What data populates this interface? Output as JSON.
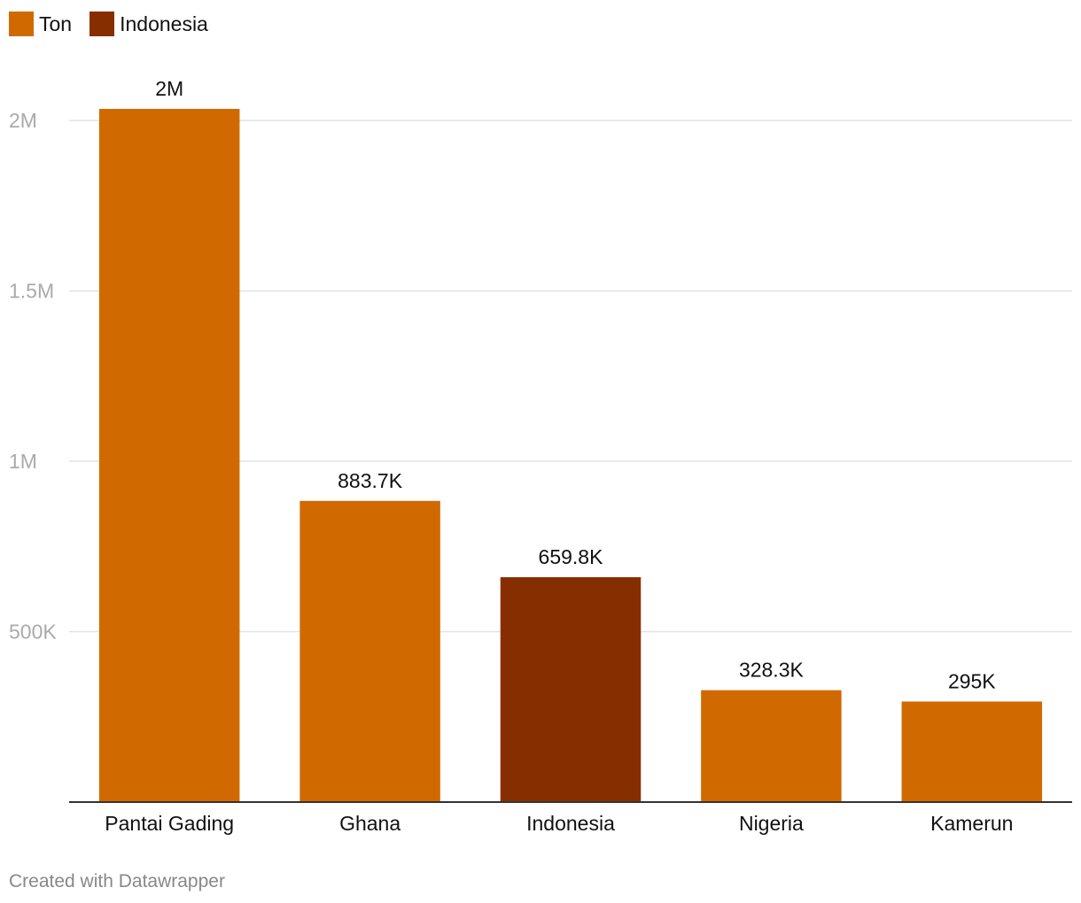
{
  "legend": [
    {
      "label": "Ton",
      "color": "#d06a00"
    },
    {
      "label": "Indonesia",
      "color": "#872e00"
    }
  ],
  "footer": "Created with Datawrapper",
  "chart_data": {
    "type": "bar",
    "categories": [
      "Pantai Gading",
      "Ghana",
      "Indonesia",
      "Nigeria",
      "Kamerun"
    ],
    "series": [
      {
        "name": "Ton",
        "values": [
          2034000,
          883700,
          659800,
          328300,
          295000
        ]
      }
    ],
    "value_labels": [
      "2M",
      "883.7K",
      "659.8K",
      "328.3K",
      "295K"
    ],
    "highlight": {
      "category": "Indonesia",
      "legend": "Indonesia"
    },
    "bar_colors": [
      "#d06a00",
      "#d06a00",
      "#872e00",
      "#d06a00",
      "#d06a00"
    ],
    "yticks": [
      500000,
      1000000,
      1500000,
      2000000
    ],
    "ytick_labels": [
      "500K",
      "1M",
      "1.5M",
      "2M"
    ],
    "ylim": [
      0,
      2034000
    ],
    "grid": true,
    "legend_position": "top-left",
    "axis_color": "#333333",
    "grid_color": "#e2e2e2",
    "tick_label_color": "#aaaaaa",
    "label_color": "#111111"
  }
}
